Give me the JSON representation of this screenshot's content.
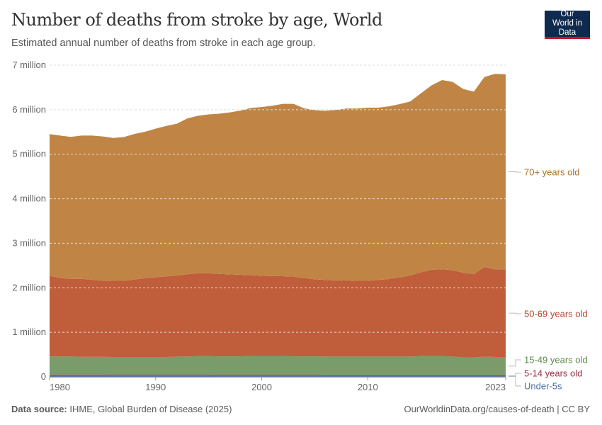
{
  "header": {
    "title": "Number of deaths from stroke by age, World",
    "subtitle": "Estimated annual number of deaths from stroke in each age group.",
    "logo": "Our World in Data"
  },
  "footer": {
    "source_label": "Data source:",
    "source": "IHME, Global Burden of Disease (2025)",
    "credit": "OurWorldinData.org/causes-of-death | CC BY"
  },
  "chart_data": {
    "type": "area",
    "stacked": true,
    "title": "Number of deaths from stroke by age, World",
    "units": "million",
    "ylim": [
      0,
      7
    ],
    "xlim": [
      1980,
      2023
    ],
    "y_ticks": [
      {
        "v": 0,
        "label": "0"
      },
      {
        "v": 1,
        "label": "1 million"
      },
      {
        "v": 2,
        "label": "2 million"
      },
      {
        "v": 3,
        "label": "3 million"
      },
      {
        "v": 4,
        "label": "4 million"
      },
      {
        "v": 5,
        "label": "5 million"
      },
      {
        "v": 6,
        "label": "6 million"
      },
      {
        "v": 7,
        "label": "7 million"
      }
    ],
    "x_ticks": [
      {
        "v": 1980,
        "label": "1980"
      },
      {
        "v": 1990,
        "label": "1990"
      },
      {
        "v": 2000,
        "label": "2000"
      },
      {
        "v": 2010,
        "label": "2010"
      },
      {
        "v": 2023,
        "label": "2023"
      }
    ],
    "grid": "horizontal dashed",
    "legend": "right, inline labels",
    "x": [
      1980,
      1981,
      1982,
      1983,
      1984,
      1985,
      1986,
      1987,
      1988,
      1989,
      1990,
      1991,
      1992,
      1993,
      1994,
      1995,
      1996,
      1997,
      1998,
      1999,
      2000,
      2001,
      2002,
      2003,
      2004,
      2005,
      2006,
      2007,
      2008,
      2009,
      2010,
      2011,
      2012,
      2013,
      2014,
      2015,
      2016,
      2017,
      2018,
      2019,
      2020,
      2021,
      2022,
      2023
    ],
    "series": [
      {
        "name": "Under-5s",
        "color": "#5b78a8",
        "label_color": "#4a6aa0",
        "values": [
          0.03,
          0.03,
          0.03,
          0.03,
          0.03,
          0.03,
          0.025,
          0.025,
          0.025,
          0.025,
          0.025,
          0.025,
          0.025,
          0.025,
          0.025,
          0.025,
          0.02,
          0.02,
          0.02,
          0.02,
          0.02,
          0.02,
          0.02,
          0.02,
          0.02,
          0.02,
          0.015,
          0.015,
          0.015,
          0.015,
          0.015,
          0.015,
          0.015,
          0.015,
          0.015,
          0.015,
          0.015,
          0.015,
          0.015,
          0.015,
          0.015,
          0.015,
          0.015,
          0.015
        ]
      },
      {
        "name": "5-14 years old",
        "color": "#9e3b4c",
        "label_color": "#9a2f42",
        "values": [
          0.02,
          0.02,
          0.02,
          0.02,
          0.02,
          0.02,
          0.02,
          0.02,
          0.02,
          0.02,
          0.02,
          0.02,
          0.02,
          0.02,
          0.02,
          0.02,
          0.02,
          0.02,
          0.02,
          0.02,
          0.02,
          0.02,
          0.02,
          0.02,
          0.02,
          0.02,
          0.02,
          0.02,
          0.02,
          0.02,
          0.02,
          0.02,
          0.02,
          0.02,
          0.02,
          0.02,
          0.02,
          0.02,
          0.02,
          0.02,
          0.02,
          0.02,
          0.02,
          0.02
        ]
      },
      {
        "name": "15-49 years old",
        "color": "#7a9b6a",
        "label_color": "#5e8a4c",
        "values": [
          0.41,
          0.41,
          0.41,
          0.4,
          0.4,
          0.4,
          0.4,
          0.4,
          0.4,
          0.4,
          0.4,
          0.4,
          0.41,
          0.41,
          0.42,
          0.42,
          0.42,
          0.42,
          0.42,
          0.43,
          0.43,
          0.43,
          0.43,
          0.42,
          0.42,
          0.42,
          0.42,
          0.42,
          0.42,
          0.42,
          0.42,
          0.42,
          0.42,
          0.42,
          0.42,
          0.43,
          0.43,
          0.43,
          0.42,
          0.4,
          0.4,
          0.42,
          0.41,
          0.41
        ]
      },
      {
        "name": "50-69 years old",
        "color": "#c05d3a",
        "label_color": "#b2452a",
        "values": [
          1.81,
          1.76,
          1.74,
          1.75,
          1.73,
          1.71,
          1.71,
          1.71,
          1.74,
          1.77,
          1.79,
          1.81,
          1.82,
          1.85,
          1.86,
          1.86,
          1.85,
          1.84,
          1.83,
          1.81,
          1.8,
          1.79,
          1.79,
          1.79,
          1.76,
          1.73,
          1.72,
          1.71,
          1.71,
          1.7,
          1.7,
          1.72,
          1.74,
          1.78,
          1.82,
          1.88,
          1.94,
          1.95,
          1.94,
          1.9,
          1.87,
          2.01,
          1.97,
          1.97
        ]
      },
      {
        "name": "70+ years old",
        "color": "#c08545",
        "label_color": "#b06f2a",
        "values": [
          3.18,
          3.2,
          3.19,
          3.22,
          3.24,
          3.24,
          3.21,
          3.23,
          3.27,
          3.29,
          3.34,
          3.38,
          3.41,
          3.5,
          3.54,
          3.57,
          3.6,
          3.64,
          3.69,
          3.76,
          3.79,
          3.83,
          3.87,
          3.88,
          3.81,
          3.8,
          3.8,
          3.83,
          3.86,
          3.87,
          3.89,
          3.87,
          3.88,
          3.89,
          3.91,
          4.02,
          4.14,
          4.25,
          4.23,
          4.13,
          4.1,
          4.27,
          4.39,
          4.38
        ]
      }
    ]
  }
}
